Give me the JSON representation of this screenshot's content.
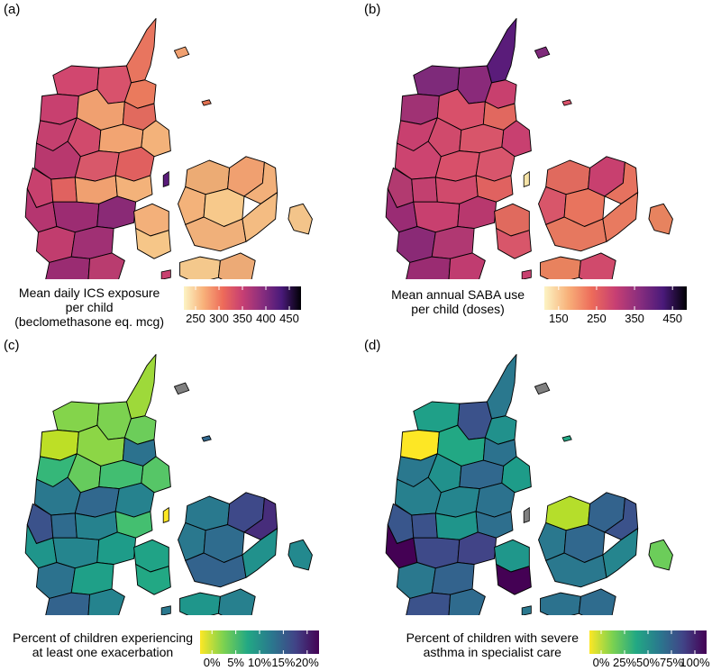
{
  "panels": [
    {
      "id": "a",
      "label": "(a)",
      "legend": {
        "title_line1": "Mean daily ICS exposure",
        "title_line2": "per child",
        "title_line3": "(beclomethasone eq. mcg)",
        "ticks": [
          "250",
          "300",
          "350",
          "400",
          "450"
        ],
        "palette": "magma",
        "colors": [
          "#fcf4c4",
          "#f8b17a",
          "#ed6b5a",
          "#c73f73",
          "#8a2e7e",
          "#4a1a7a",
          "#000004"
        ]
      }
    },
    {
      "id": "b",
      "label": "(b)",
      "legend": {
        "title_line1": "Mean annual SABA use",
        "title_line2": "per child (doses)",
        "ticks": [
          "150",
          "250",
          "350",
          "450"
        ],
        "palette": "magma",
        "colors": [
          "#fcf4c4",
          "#f8b17a",
          "#ed6b5a",
          "#c73f73",
          "#8a2e7e",
          "#4a1a7a",
          "#000004"
        ]
      }
    },
    {
      "id": "c",
      "label": "(c)",
      "legend": {
        "title_line1": "Percent of children experiencing",
        "title_line2": "at least one exacerbation",
        "ticks": [
          "0%",
          "5%",
          "10%",
          "15%",
          "20%"
        ],
        "palette": "viridis",
        "colors": [
          "#fde725",
          "#7ad151",
          "#22a884",
          "#2a788e",
          "#414487",
          "#440154"
        ]
      }
    },
    {
      "id": "d",
      "label": "(d)",
      "legend": {
        "title_line1": "Percent of children with severe",
        "title_line2": "asthma in specialist care",
        "ticks": [
          "0%",
          "25%",
          "50%",
          "75%",
          "100%"
        ],
        "palette": "viridis",
        "colors": [
          "#fde725",
          "#7ad151",
          "#22a884",
          "#2a788e",
          "#414487",
          "#440154"
        ]
      }
    }
  ]
}
